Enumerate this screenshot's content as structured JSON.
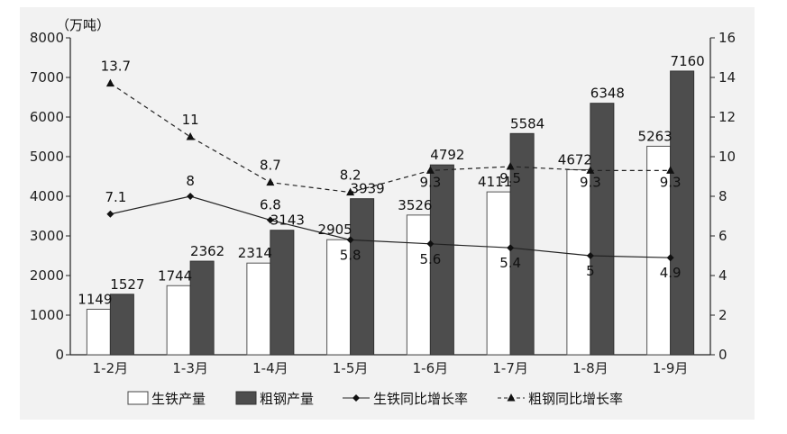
{
  "chart_data": {
    "type": "bar",
    "title": "",
    "ylabel": "（万吨）",
    "categories": [
      "1-2月",
      "1-3月",
      "1-4月",
      "1-5月",
      "1-6月",
      "1-7月",
      "1-8月",
      "1-9月"
    ],
    "ylim": [
      0,
      8000
    ],
    "y_ticks": [
      0,
      1000,
      2000,
      3000,
      4000,
      5000,
      6000,
      7000,
      8000
    ],
    "y2lim": [
      0,
      16
    ],
    "y2_ticks": [
      0,
      2,
      4,
      6,
      8,
      10,
      12,
      14,
      16
    ],
    "bar_series": [
      {
        "name": "生铁产量",
        "values": [
          1149,
          1744,
          2314,
          2905,
          3526,
          4111,
          4672,
          5263
        ],
        "color": "#ffffff"
      },
      {
        "name": "粗钢产量",
        "values": [
          1527,
          2362,
          3143,
          3939,
          4792,
          5584,
          6348,
          7160
        ],
        "color": "#4d4d4d"
      }
    ],
    "line_series": [
      {
        "name": "生铁同比增长率",
        "values": [
          7.1,
          8.0,
          6.8,
          5.8,
          5.6,
          5.4,
          5.0,
          4.9
        ],
        "marker": "diamond",
        "dash": "solid"
      },
      {
        "name": "粗钢同比增长率",
        "values": [
          13.7,
          11.0,
          8.7,
          8.2,
          9.3,
          9.5,
          9.3,
          9.3
        ],
        "marker": "triangle",
        "dash": "dashed"
      }
    ],
    "grid": false,
    "legend_position": "bottom"
  }
}
